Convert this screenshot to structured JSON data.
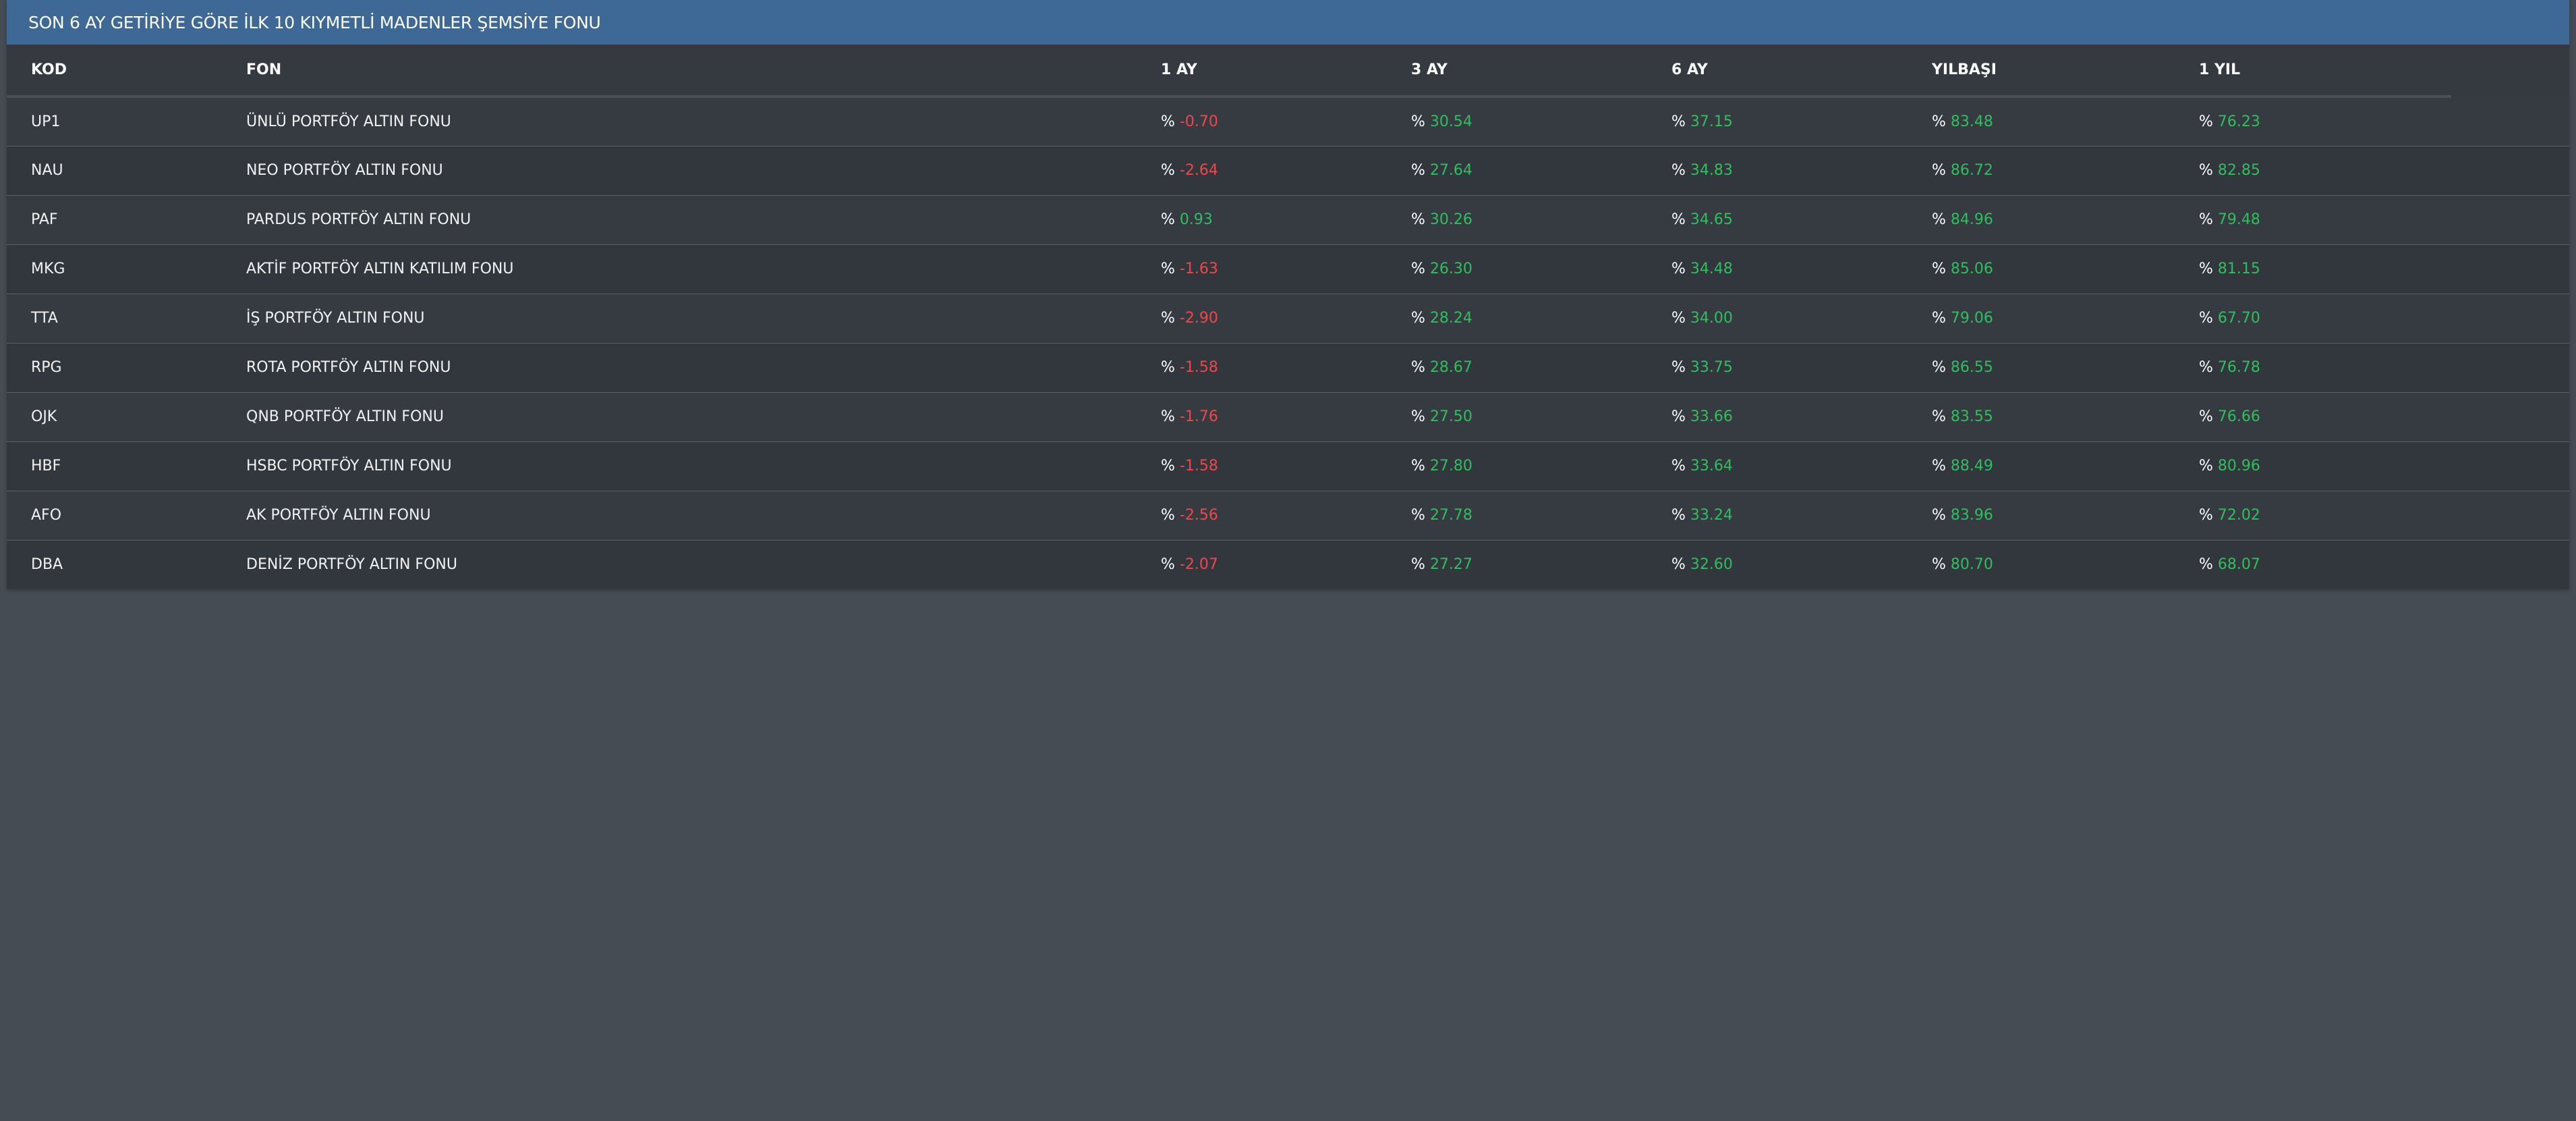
{
  "header": {
    "title": "SON 6 AY GETİRİYE GÖRE İLK 10 KIYMETLİ MADENLER ŞEMSİYE FONU"
  },
  "columns": {
    "kod": "KOD",
    "fon": "FON",
    "ay1": "1 AY",
    "ay3": "3 AY",
    "ay6": "6 AY",
    "ytd": "YILBAŞI",
    "yil1": "1 YIL"
  },
  "percent_sign": "%",
  "colors": {
    "header_bg": "#3e6896",
    "positive": "#2fbf5f",
    "negative": "#f0474a",
    "page_bg": "#454c54",
    "table_bg": "#33373e"
  },
  "rows": [
    {
      "kod": "UP1",
      "fon": "ÜNLÜ PORTFÖY ALTIN FONU",
      "ay1": "-0.70",
      "ay3": "30.54",
      "ay6": "37.15",
      "ytd": "83.48",
      "yil1": "76.23"
    },
    {
      "kod": "NAU",
      "fon": "NEO PORTFÖY ALTIN FONU",
      "ay1": "-2.64",
      "ay3": "27.64",
      "ay6": "34.83",
      "ytd": "86.72",
      "yil1": "82.85"
    },
    {
      "kod": "PAF",
      "fon": "PARDUS PORTFÖY ALTIN FONU",
      "ay1": "0.93",
      "ay3": "30.26",
      "ay6": "34.65",
      "ytd": "84.96",
      "yil1": "79.48"
    },
    {
      "kod": "MKG",
      "fon": "AKTİF PORTFÖY ALTIN KATILIM FONU",
      "ay1": "-1.63",
      "ay3": "26.30",
      "ay6": "34.48",
      "ytd": "85.06",
      "yil1": "81.15"
    },
    {
      "kod": "TTA",
      "fon": "İŞ PORTFÖY ALTIN FONU",
      "ay1": "-2.90",
      "ay3": "28.24",
      "ay6": "34.00",
      "ytd": "79.06",
      "yil1": "67.70"
    },
    {
      "kod": "RPG",
      "fon": "ROTA PORTFÖY ALTIN FONU",
      "ay1": "-1.58",
      "ay3": "28.67",
      "ay6": "33.75",
      "ytd": "86.55",
      "yil1": "76.78"
    },
    {
      "kod": "OJK",
      "fon": "QNB PORTFÖY ALTIN FONU",
      "ay1": "-1.76",
      "ay3": "27.50",
      "ay6": "33.66",
      "ytd": "83.55",
      "yil1": "76.66"
    },
    {
      "kod": "HBF",
      "fon": "HSBC PORTFÖY ALTIN FONU",
      "ay1": "-1.58",
      "ay3": "27.80",
      "ay6": "33.64",
      "ytd": "88.49",
      "yil1": "80.96"
    },
    {
      "kod": "AFO",
      "fon": "AK PORTFÖY ALTIN FONU",
      "ay1": "-2.56",
      "ay3": "27.78",
      "ay6": "33.24",
      "ytd": "83.96",
      "yil1": "72.02"
    },
    {
      "kod": "DBA",
      "fon": "DENİZ PORTFÖY ALTIN FONU",
      "ay1": "-2.07",
      "ay3": "27.27",
      "ay6": "32.60",
      "ytd": "80.70",
      "yil1": "68.07"
    }
  ]
}
